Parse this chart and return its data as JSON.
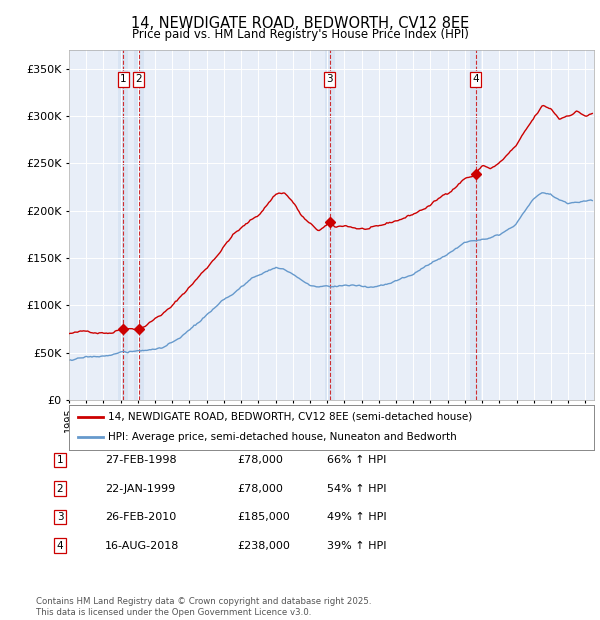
{
  "title": "14, NEWDIGATE ROAD, BEDWORTH, CV12 8EE",
  "subtitle": "Price paid vs. HM Land Registry's House Price Index (HPI)",
  "ylim": [
    0,
    370000
  ],
  "yticks": [
    0,
    50000,
    100000,
    150000,
    200000,
    250000,
    300000,
    350000
  ],
  "ytick_labels": [
    "£0",
    "£50K",
    "£100K",
    "£150K",
    "£200K",
    "£250K",
    "£300K",
    "£350K"
  ],
  "xlim_start": 1995.0,
  "xlim_end": 2025.5,
  "background_color": "#ffffff",
  "plot_bg_color": "#e8eef8",
  "grid_color": "#ffffff",
  "sale_color": "#cc0000",
  "hpi_color": "#6699cc",
  "transactions": [
    {
      "num": 1,
      "date_dec": 1998.15,
      "price": 78000
    },
    {
      "num": 2,
      "date_dec": 1999.06,
      "price": 78000
    },
    {
      "num": 3,
      "date_dec": 2010.15,
      "price": 185000
    },
    {
      "num": 4,
      "date_dec": 2018.62,
      "price": 238000
    }
  ],
  "legend_label_sale": "14, NEWDIGATE ROAD, BEDWORTH, CV12 8EE (semi-detached house)",
  "legend_label_hpi": "HPI: Average price, semi-detached house, Nuneaton and Bedworth",
  "table_rows": [
    [
      "1",
      "27-FEB-1998",
      "£78,000",
      "66% ↑ HPI"
    ],
    [
      "2",
      "22-JAN-1999",
      "£78,000",
      "54% ↑ HPI"
    ],
    [
      "3",
      "26-FEB-2010",
      "£185,000",
      "49% ↑ HPI"
    ],
    [
      "4",
      "16-AUG-2018",
      "£238,000",
      "39% ↑ HPI"
    ]
  ],
  "footer": "Contains HM Land Registry data © Crown copyright and database right 2025.\nThis data is licensed under the Open Government Licence v3.0."
}
